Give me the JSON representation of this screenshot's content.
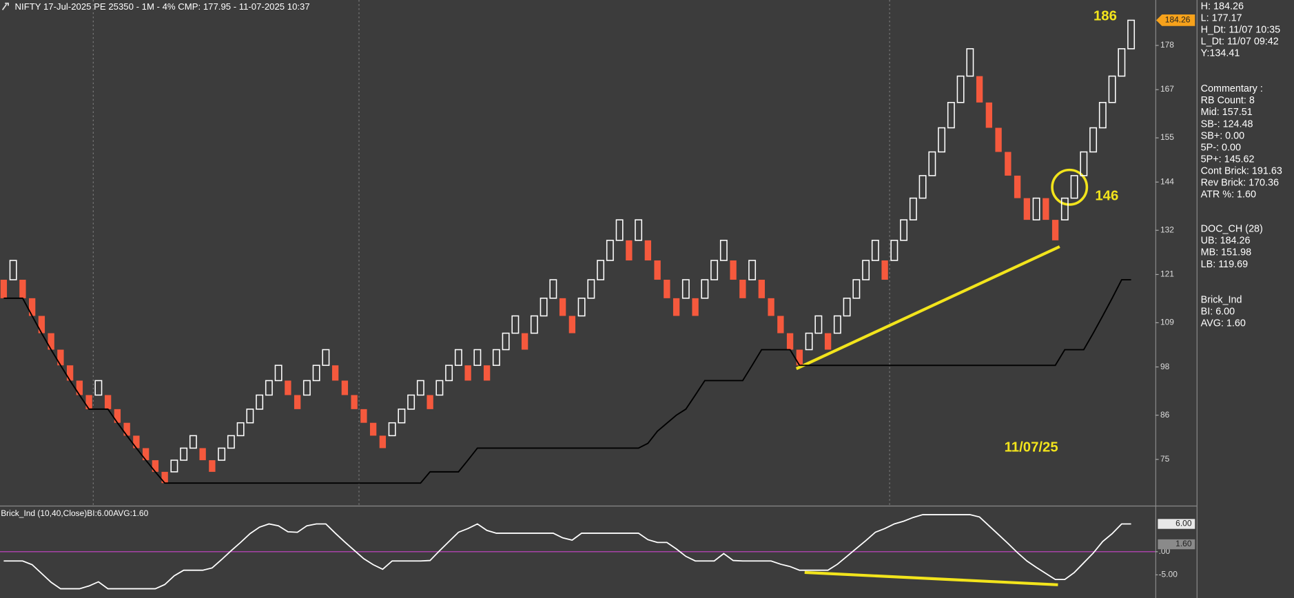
{
  "chart_data": [
    {
      "type": "renko",
      "title": "NIFTY 17-Jul-2025 PE 25350 - 1M - 4% CMP: 177.95 - 11-07-2025 10:37",
      "up_color": "#ffffff",
      "down_color": "#f5593d",
      "open": [
        119.7,
        119.7,
        119.7,
        115.1,
        110.7,
        106.4,
        102.3,
        98.4,
        94.6,
        91.0,
        91.0,
        91.0,
        87.5,
        84.1,
        80.9,
        77.8,
        74.8,
        71.9,
        71.9,
        74.8,
        77.8,
        77.8,
        74.8,
        74.8,
        77.8,
        80.9,
        84.1,
        87.5,
        91.0,
        94.6,
        94.6,
        91.0,
        91.0,
        94.6,
        98.4,
        98.4,
        94.6,
        91.0,
        87.5,
        84.1,
        80.9,
        80.9,
        84.1,
        87.5,
        91.0,
        91.0,
        91.0,
        94.6,
        98.4,
        98.4,
        98.4,
        98.4,
        98.4,
        102.3,
        106.4,
        106.4,
        106.4,
        110.7,
        115.1,
        115.1,
        110.7,
        110.7,
        115.1,
        119.7,
        124.5,
        129.5,
        129.5,
        129.5,
        129.5,
        124.5,
        119.7,
        115.1,
        115.1,
        115.1,
        115.1,
        119.7,
        124.5,
        124.5,
        119.7,
        119.7,
        119.7,
        115.1,
        110.7,
        106.4,
        102.3,
        102.3,
        106.4,
        106.4,
        106.4,
        110.7,
        115.1,
        119.7,
        124.5,
        124.5,
        124.5,
        129.5,
        134.6,
        140.0,
        145.6,
        151.5,
        157.5,
        163.8,
        170.36,
        170.36,
        163.8,
        157.5,
        151.5,
        145.6,
        140.0,
        134.6,
        140.0,
        134.6,
        134.6,
        140.0,
        145.6,
        151.5,
        157.5,
        163.8,
        170.36,
        177.17
      ],
      "close": [
        115.1,
        124.5,
        115.1,
        110.7,
        106.4,
        102.3,
        98.4,
        94.6,
        91.0,
        87.5,
        94.6,
        87.5,
        84.1,
        80.9,
        77.8,
        74.8,
        71.9,
        69.1,
        74.8,
        77.8,
        80.9,
        74.8,
        71.9,
        77.8,
        80.9,
        84.1,
        87.5,
        91.0,
        94.6,
        98.4,
        91.0,
        87.5,
        94.6,
        98.4,
        102.3,
        94.6,
        91.0,
        87.5,
        84.1,
        80.9,
        77.8,
        84.1,
        87.5,
        91.0,
        94.6,
        87.5,
        94.6,
        98.4,
        102.3,
        94.6,
        102.3,
        94.6,
        102.3,
        106.4,
        110.7,
        102.3,
        110.7,
        115.1,
        119.7,
        110.7,
        106.4,
        115.1,
        119.7,
        124.5,
        129.5,
        134.6,
        124.5,
        134.6,
        124.5,
        119.7,
        115.1,
        110.7,
        119.7,
        110.7,
        119.7,
        124.5,
        129.5,
        119.7,
        115.1,
        124.5,
        115.1,
        110.7,
        106.4,
        102.3,
        98.4,
        106.4,
        110.7,
        102.3,
        110.7,
        115.1,
        119.7,
        124.5,
        129.5,
        119.7,
        129.5,
        134.6,
        140.0,
        145.6,
        151.5,
        157.5,
        163.8,
        170.36,
        177.17,
        163.8,
        157.5,
        151.5,
        145.6,
        140.0,
        134.6,
        140.0,
        134.6,
        129.5,
        140.0,
        145.6,
        151.5,
        157.5,
        163.8,
        170.36,
        177.17,
        184.26
      ],
      "lower_band": {
        "color": "#000000",
        "values": [
          115.1,
          115.1,
          115.1,
          110.7,
          106.4,
          102.3,
          98.4,
          94.6,
          91.0,
          87.5,
          87.5,
          87.5,
          84.1,
          80.9,
          77.8,
          74.8,
          71.9,
          69.1,
          69.1,
          69.1,
          69.1,
          69.1,
          69.1,
          69.1,
          69.1,
          69.1,
          69.1,
          69.1,
          69.1,
          69.1,
          69.1,
          69.1,
          69.1,
          69.1,
          69.1,
          69.1,
          69.1,
          69.1,
          69.1,
          69.1,
          69.1,
          69.1,
          69.1,
          69.1,
          69.1,
          71.9,
          71.9,
          71.9,
          71.9,
          74.8,
          77.8,
          77.8,
          77.8,
          77.8,
          77.8,
          77.8,
          77.8,
          77.8,
          77.8,
          77.8,
          77.8,
          77.8,
          77.8,
          77.8,
          77.8,
          77.8,
          77.8,
          77.8,
          79,
          82,
          84,
          86,
          87.5,
          91.0,
          94.6,
          94.6,
          94.6,
          94.6,
          94.6,
          98.4,
          102.3,
          102.3,
          102.3,
          102.3,
          98.4,
          98.4,
          98.4,
          98.4,
          98.4,
          98.4,
          98.4,
          98.4,
          98.4,
          98.4,
          98.4,
          98.4,
          98.4,
          98.4,
          98.4,
          98.4,
          98.4,
          98.4,
          98.4,
          98.4,
          98.4,
          98.4,
          98.4,
          98.4,
          98.4,
          98.4,
          98.4,
          98.4,
          102.3,
          102.3,
          102.3,
          106.4,
          110.7,
          115.1,
          119.7,
          119.7
        ]
      },
      "ylim": [
        63.7,
        189.3
      ],
      "yticks": [
        75,
        86,
        98,
        109,
        121,
        132,
        144,
        155,
        167,
        178
      ],
      "price_marker": {
        "value": 184.26,
        "label": "184.26",
        "color": "#f7a21b"
      },
      "annotations": [
        "186",
        "146",
        "11/07/25"
      ],
      "annotation_color": "#f2e41c",
      "info_panel": [
        [
          "H: 184.26",
          "L: 177.17",
          "H_Dt: 11/07 10:35",
          "L_Dt: 11/07 09:42",
          "Y:134.41"
        ],
        [
          "Commentary :",
          "RB Count: 8",
          "Mid: 157.51",
          "SB-: 124.48",
          "SB+: 0.00",
          "5P-: 0.00",
          "5P+: 145.62",
          "Cont Brick: 191.63",
          "Rev Brick: 170.36",
          "ATR %: 1.60"
        ],
        [
          "DOC_CH (28)",
          "UB: 184.26",
          "MB: 151.98",
          "LB: 119.69"
        ],
        [
          "Brick_Ind",
          "BI: 6.00",
          "AVG: 1.60"
        ]
      ]
    },
    {
      "type": "line",
      "title": "Brick_Ind (10,40,Close)BI:6.00AVG:1.60",
      "color": "#ffffff",
      "values": [
        -2,
        -2,
        -2,
        -2.8,
        -4.7,
        -6.6,
        -8,
        -8,
        -8,
        -7.4,
        -6.5,
        -8,
        -8,
        -8,
        -8,
        -8,
        -8,
        -7.1,
        -5.2,
        -4,
        -4,
        -4,
        -3.5,
        -1.7,
        0.2,
        2,
        3.9,
        5.3,
        6,
        5.6,
        4.3,
        4.2,
        5.6,
        6,
        6,
        4,
        2.1,
        0.3,
        -1.5,
        -2.8,
        -3.8,
        -2,
        -2,
        -2,
        -2,
        -1.9,
        0.2,
        2.2,
        4.2,
        5,
        6,
        4.6,
        4,
        4,
        4,
        4,
        4,
        4,
        4,
        3,
        2.5,
        4,
        4,
        4,
        4,
        4,
        4,
        4,
        2.6,
        2,
        2,
        0.6,
        -1,
        -2,
        -2,
        -2,
        -0.4,
        -1.9,
        -2,
        -2,
        -2,
        -2,
        -2.7,
        -3.2,
        -4,
        -4,
        -4,
        -4,
        -2.7,
        -1,
        0.7,
        2.4,
        4.2,
        5,
        6,
        6.6,
        7.4,
        8,
        8,
        8,
        8,
        8,
        8,
        7.5,
        5.6,
        3.7,
        1.8,
        -0.2,
        -2,
        -3.4,
        -4.7,
        -6,
        -6,
        -4.5,
        -2.4,
        -0.3,
        2.2,
        3.9,
        6,
        6
      ],
      "ylim": [
        -10,
        9.6
      ],
      "yticks": [
        {
          "value": 0,
          "label": ".00"
        },
        {
          "value": -5,
          "label": "-5.00"
        }
      ],
      "hline": 0,
      "hline_color": "#cc44cc",
      "markers": [
        {
          "value": 6,
          "label": "6.00",
          "color": "#e8e8e8"
        },
        {
          "value": 1.6,
          "label": "1.60",
          "color": "#8a8a8a"
        }
      ]
    }
  ]
}
